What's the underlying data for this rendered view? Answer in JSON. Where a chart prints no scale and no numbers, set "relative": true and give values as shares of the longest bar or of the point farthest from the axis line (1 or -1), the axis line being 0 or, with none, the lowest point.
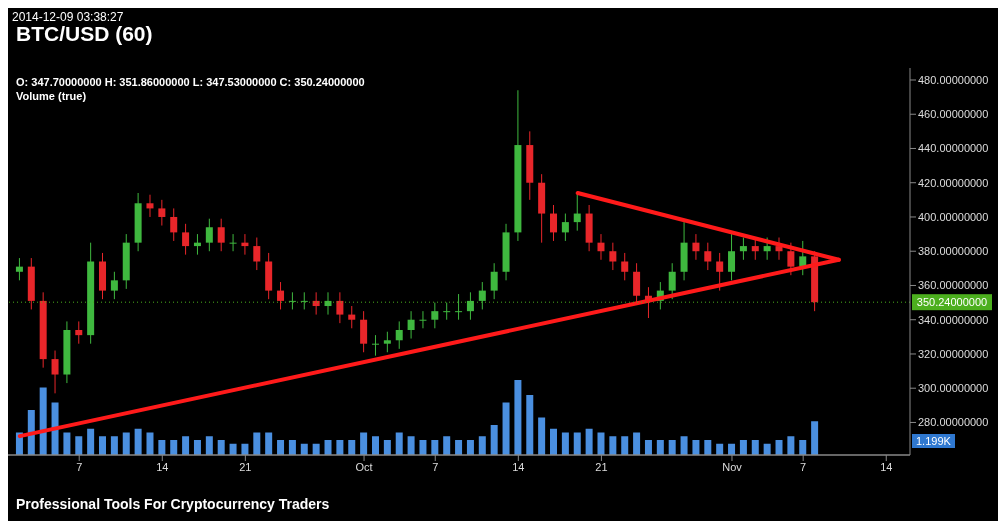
{
  "chart_data": [
    {
      "type": "candlestick",
      "title": "BTC/USD (60)",
      "subtitle": "2014-12-09 03:38:27",
      "annotations": [
        "O: 347.70000000 H: 351.86000000 L: 347.53000000 C: 350.24000000",
        "Volume (true)",
        "Professional Tools For Cryptocurrency Traders"
      ],
      "x": [
        "2014-09-02",
        "2014-09-03",
        "2014-09-04",
        "2014-09-05",
        "2014-09-06",
        "2014-09-07",
        "2014-09-08",
        "2014-09-09",
        "2014-09-10",
        "2014-09-11",
        "2014-09-12",
        "2014-09-13",
        "2014-09-14",
        "2014-09-15",
        "2014-09-16",
        "2014-09-17",
        "2014-09-18",
        "2014-09-19",
        "2014-09-20",
        "2014-09-21",
        "2014-09-22",
        "2014-09-23",
        "2014-09-24",
        "2014-09-25",
        "2014-09-26",
        "2014-09-27",
        "2014-09-28",
        "2014-09-29",
        "2014-09-30",
        "2014-10-01",
        "2014-10-02",
        "2014-10-03",
        "2014-10-04",
        "2014-10-05",
        "2014-10-06",
        "2014-10-07",
        "2014-10-08",
        "2014-10-09",
        "2014-10-10",
        "2014-10-11",
        "2014-10-12",
        "2014-10-13",
        "2014-10-14",
        "2014-10-15",
        "2014-10-16",
        "2014-10-17",
        "2014-10-18",
        "2014-10-19",
        "2014-10-20",
        "2014-10-21",
        "2014-10-22",
        "2014-10-23",
        "2014-10-24",
        "2014-10-25",
        "2014-10-26",
        "2014-10-27",
        "2014-10-28",
        "2014-10-29",
        "2014-10-30",
        "2014-10-31",
        "2014-11-01",
        "2014-11-02",
        "2014-11-03",
        "2014-11-04",
        "2014-11-05",
        "2014-11-06",
        "2014-11-07",
        "2014-11-08"
      ],
      "ohlc": [
        [
          368,
          376,
          363,
          371
        ],
        [
          371,
          376,
          346,
          351
        ],
        [
          351,
          356,
          312,
          317
        ],
        [
          317,
          322,
          297,
          308
        ],
        [
          308,
          339,
          303,
          334
        ],
        [
          334,
          339,
          326,
          331
        ],
        [
          331,
          385,
          326,
          374
        ],
        [
          374,
          379,
          352,
          357
        ],
        [
          357,
          368,
          352,
          363
        ],
        [
          363,
          390,
          358,
          385
        ],
        [
          385,
          414,
          380,
          408
        ],
        [
          408,
          413,
          400,
          405
        ],
        [
          405,
          410,
          395,
          400
        ],
        [
          400,
          405,
          386,
          391
        ],
        [
          391,
          396,
          378,
          383
        ],
        [
          383,
          390,
          378,
          385
        ],
        [
          385,
          399,
          380,
          394
        ],
        [
          394,
          399,
          380,
          385
        ],
        [
          385,
          390,
          380,
          385
        ],
        [
          385,
          390,
          378,
          383
        ],
        [
          383,
          388,
          369,
          374
        ],
        [
          374,
          379,
          352,
          357
        ],
        [
          357,
          362,
          346,
          351
        ],
        [
          351,
          356,
          346,
          351
        ],
        [
          351,
          356,
          346,
          351
        ],
        [
          351,
          356,
          343,
          348
        ],
        [
          348,
          356,
          343,
          351
        ],
        [
          351,
          356,
          338,
          343
        ],
        [
          343,
          348,
          335,
          340
        ],
        [
          340,
          345,
          321,
          326
        ],
        [
          326,
          331,
          319,
          326
        ],
        [
          326,
          333,
          321,
          328
        ],
        [
          328,
          339,
          323,
          334
        ],
        [
          334,
          345,
          329,
          340
        ],
        [
          340,
          345,
          335,
          340
        ],
        [
          340,
          350,
          335,
          345
        ],
        [
          345,
          350,
          340,
          345
        ],
        [
          345,
          355,
          340,
          345
        ],
        [
          345,
          356,
          340,
          351
        ],
        [
          351,
          362,
          346,
          357
        ],
        [
          357,
          373,
          352,
          368
        ],
        [
          368,
          396,
          363,
          391
        ],
        [
          391,
          474,
          386,
          442
        ],
        [
          442,
          450,
          410,
          420
        ],
        [
          420,
          425,
          385,
          402
        ],
        [
          402,
          407,
          386,
          391
        ],
        [
          391,
          402,
          386,
          397
        ],
        [
          397,
          414,
          392,
          402
        ],
        [
          402,
          407,
          380,
          385
        ],
        [
          385,
          390,
          375,
          380
        ],
        [
          380,
          385,
          369,
          374
        ],
        [
          374,
          379,
          363,
          368
        ],
        [
          368,
          373,
          349,
          354
        ],
        [
          354,
          359,
          341,
          351
        ],
        [
          351,
          362,
          346,
          357
        ],
        [
          357,
          373,
          352,
          368
        ],
        [
          368,
          397,
          363,
          385
        ],
        [
          385,
          390,
          375,
          380
        ],
        [
          380,
          385,
          369,
          374
        ],
        [
          374,
          379,
          357,
          368
        ],
        [
          368,
          390,
          363,
          380
        ],
        [
          380,
          388,
          375,
          383
        ],
        [
          383,
          388,
          375,
          380
        ],
        [
          380,
          388,
          375,
          383
        ],
        [
          383,
          388,
          375,
          380
        ],
        [
          380,
          385,
          366,
          371
        ],
        [
          371,
          386,
          366,
          377
        ],
        [
          377,
          380,
          345,
          350.24
        ]
      ],
      "series": [
        {
          "type": "line",
          "color": "#ff1a1a",
          "x": [
            "2014-09-02",
            "2014-11-10"
          ],
          "values": [
            272,
            375
          ]
        },
        {
          "type": "line",
          "color": "#ff1a1a",
          "x": [
            "2014-10-19",
            "2014-11-10"
          ],
          "values": [
            414,
            375
          ]
        }
      ],
      "xlim": [
        "2014-09-01",
        "2014-11-16"
      ],
      "xticks": [
        {
          "value": "2014-09-07",
          "label": "7"
        },
        {
          "value": "2014-09-14",
          "label": "14"
        },
        {
          "value": "2014-09-21",
          "label": "21"
        },
        {
          "value": "2014-10-01",
          "label": "Oct"
        },
        {
          "value": "2014-10-07",
          "label": "7"
        },
        {
          "value": "2014-10-14",
          "label": "14"
        },
        {
          "value": "2014-10-21",
          "label": "21"
        },
        {
          "value": "2014-11-01",
          "label": "Nov"
        },
        {
          "value": "2014-11-07",
          "label": "7"
        },
        {
          "value": "2014-11-14",
          "label": "14"
        }
      ],
      "ylim": [
        261,
        487
      ],
      "yticks": [
        {
          "value": 280,
          "label": "280.00000000"
        },
        {
          "value": 300,
          "label": "300.00000000"
        },
        {
          "value": 320,
          "label": "320.00000000"
        },
        {
          "value": 340,
          "label": "340.00000000"
        },
        {
          "value": 360,
          "label": "360.00000000"
        },
        {
          "value": 380,
          "label": "380.00000000"
        },
        {
          "value": 400,
          "label": "400.00000000"
        },
        {
          "value": 420,
          "label": "420.00000000"
        },
        {
          "value": 440,
          "label": "440.00000000"
        },
        {
          "value": 460,
          "label": "460.00000000"
        },
        {
          "value": 480,
          "label": "480.00000000"
        }
      ],
      "ref_lines": [
        {
          "axis": "y",
          "value": 350.24,
          "label": "350.24000000",
          "color": "#4caf1e",
          "line_style": "dotted"
        }
      ]
    },
    {
      "type": "bar",
      "relative": true,
      "color": "#4a8fe0",
      "annotations": [
        "1.199K"
      ],
      "x": [
        "2014-09-02",
        "2014-09-03",
        "2014-09-04",
        "2014-09-05",
        "2014-09-06",
        "2014-09-07",
        "2014-09-08",
        "2014-09-09",
        "2014-09-10",
        "2014-09-11",
        "2014-09-12",
        "2014-09-13",
        "2014-09-14",
        "2014-09-15",
        "2014-09-16",
        "2014-09-17",
        "2014-09-18",
        "2014-09-19",
        "2014-09-20",
        "2014-09-21",
        "2014-09-22",
        "2014-09-23",
        "2014-09-24",
        "2014-09-25",
        "2014-09-26",
        "2014-09-27",
        "2014-09-28",
        "2014-09-29",
        "2014-09-30",
        "2014-10-01",
        "2014-10-02",
        "2014-10-03",
        "2014-10-04",
        "2014-10-05",
        "2014-10-06",
        "2014-10-07",
        "2014-10-08",
        "2014-10-09",
        "2014-10-10",
        "2014-10-11",
        "2014-10-12",
        "2014-10-13",
        "2014-10-14",
        "2014-10-15",
        "2014-10-16",
        "2014-10-17",
        "2014-10-18",
        "2014-10-19",
        "2014-10-20",
        "2014-10-21",
        "2014-10-22",
        "2014-10-23",
        "2014-10-24",
        "2014-10-25",
        "2014-10-26",
        "2014-10-27",
        "2014-10-28",
        "2014-10-29",
        "2014-10-30",
        "2014-10-31",
        "2014-11-01",
        "2014-11-02",
        "2014-11-03",
        "2014-11-04",
        "2014-11-05",
        "2014-11-06",
        "2014-11-07",
        "2014-11-08"
      ],
      "xlim": [
        "2014-09-01",
        "2014-11-16"
      ],
      "values": [
        0.3,
        0.6,
        0.9,
        0.7,
        0.3,
        0.25,
        0.35,
        0.25,
        0.25,
        0.3,
        0.35,
        0.3,
        0.2,
        0.2,
        0.25,
        0.2,
        0.25,
        0.2,
        0.15,
        0.15,
        0.3,
        0.3,
        0.2,
        0.2,
        0.15,
        0.15,
        0.2,
        0.2,
        0.2,
        0.3,
        0.25,
        0.2,
        0.3,
        0.25,
        0.2,
        0.2,
        0.25,
        0.2,
        0.2,
        0.25,
        0.4,
        0.7,
        1,
        0.8,
        0.5,
        0.35,
        0.3,
        0.3,
        0.35,
        0.3,
        0.25,
        0.25,
        0.3,
        0.2,
        0.2,
        0.2,
        0.25,
        0.2,
        0.2,
        0.15,
        0.15,
        0.2,
        0.2,
        0.15,
        0.2,
        0.25,
        0.2,
        0.45
      ]
    }
  ]
}
